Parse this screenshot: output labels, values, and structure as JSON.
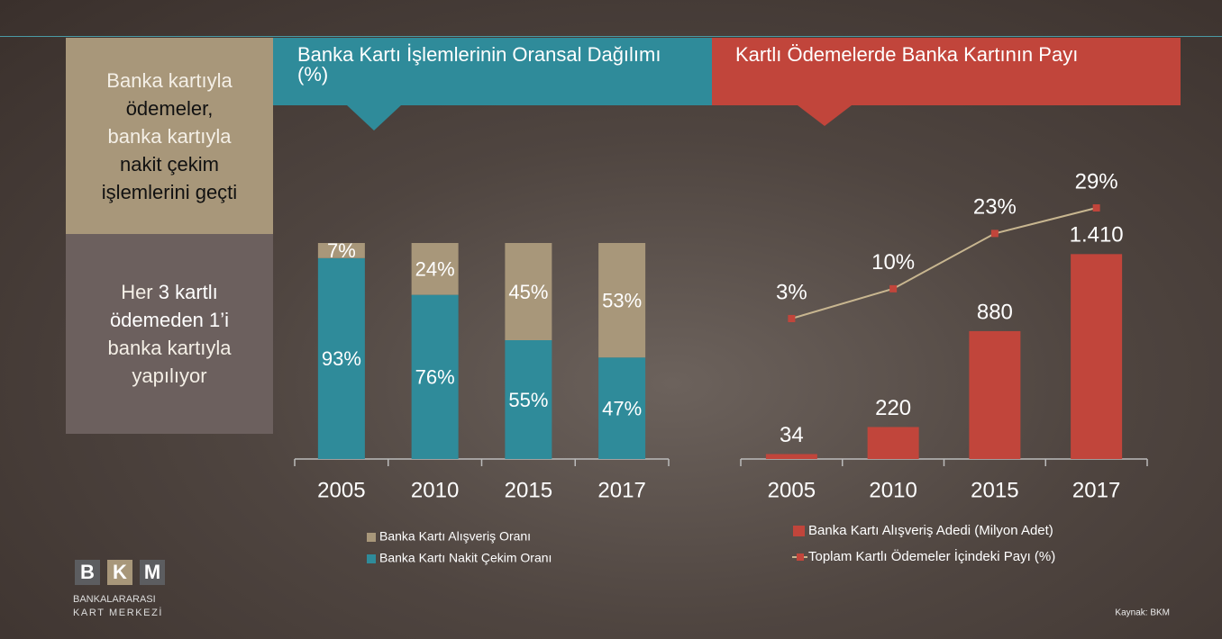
{
  "panels": [
    {
      "parts": [
        "Banka kartıyla",
        "ödemeler,",
        "banka kartıyla",
        "nakit çekim",
        "işlemlerini geçti"
      ]
    },
    {
      "parts": [
        "Her",
        "3 kartlı",
        "ödemeden 1’i",
        "banka kartıyla",
        "yapılıyor"
      ]
    }
  ],
  "logo": {
    "letters": [
      "B",
      "K",
      "M"
    ],
    "line1": "BANKALARARASI",
    "line2": "KART MERKEZİ"
  },
  "source": "Kaynak: BKM",
  "chart_data": [
    {
      "type": "bar",
      "stacked": true,
      "title": "Banka Kartı İşlemlerinin Oransal Dağılımı (%)",
      "categories": [
        "2005",
        "2010",
        "2015",
        "2017"
      ],
      "ylim": [
        0,
        100
      ],
      "series": [
        {
          "name": "Banka Kartı Alışveriş Oranı",
          "color": "#a8977a",
          "values": [
            7,
            24,
            45,
            53
          ],
          "value_labels": [
            "7%",
            "24%",
            "45%",
            "53%"
          ]
        },
        {
          "name": "Banka Kartı Nakit Çekim Oranı",
          "color": "#2f8b9a",
          "values": [
            93,
            76,
            55,
            47
          ],
          "value_labels": [
            "93%",
            "76%",
            "55%",
            "47%"
          ]
        }
      ]
    },
    {
      "type": "combo",
      "title": "Kartlı Ödemelerde Banka Kartının Payı",
      "categories": [
        "2005",
        "2010",
        "2015",
        "2017"
      ],
      "ylim": [
        0,
        2050
      ],
      "y2lim": [
        -30,
        40
      ],
      "series": [
        {
          "name": "Banka Kartı Alışveriş Adedi (Milyon Adet)",
          "type": "bar",
          "color": "#c1453b",
          "values": [
            34,
            220,
            880,
            1410
          ],
          "value_labels": [
            "34",
            "220",
            "880",
            "1.410"
          ]
        },
        {
          "name": "Toplam Kartlı Ödemeler İçindeki Payı (%)",
          "type": "line",
          "axis": "y2",
          "color": "#c8b690",
          "marker_color": "#c1453b",
          "values": [
            3,
            10,
            23,
            29
          ],
          "value_labels": [
            "3%",
            "10%",
            "23%",
            "29%"
          ]
        }
      ]
    }
  ]
}
